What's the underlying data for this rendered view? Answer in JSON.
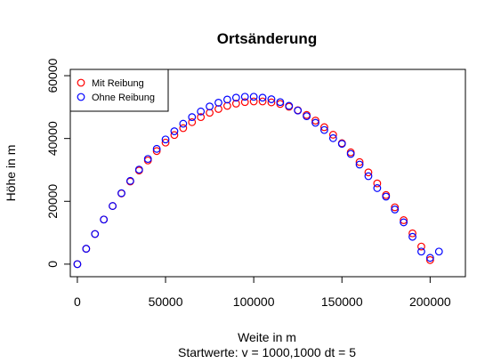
{
  "chart_data": {
    "type": "scatter",
    "title": "Ortsänderung",
    "xlabel": "Weite in m",
    "ylabel": "Höhe in m",
    "subtitle": "Startwerte: v = 1000,1000 dt = 5",
    "xlim": [
      -4000,
      220000
    ],
    "ylim": [
      -4000,
      62000
    ],
    "xticks": [
      0,
      50000,
      100000,
      150000,
      200000
    ],
    "yticks": [
      0,
      20000,
      40000,
      60000
    ],
    "xtick_labels": [
      "0",
      "50000",
      "100000",
      "150000",
      "200000"
    ],
    "ytick_labels": [
      "0",
      "20000",
      "40000",
      "60000"
    ],
    "grid": false,
    "legend_position": "top-left",
    "series": [
      {
        "name": "Mit Reibung",
        "color": "#ff0000",
        "marker": "open-circle",
        "x": [
          0,
          5000,
          10000,
          15000,
          20000,
          25000,
          30000,
          35000,
          40000,
          45000,
          50000,
          55000,
          60000,
          65000,
          70000,
          75000,
          80000,
          85000,
          90000,
          95000,
          100000,
          105000,
          110000,
          115000,
          120000,
          125000,
          130000,
          135000,
          140000,
          145000,
          150000,
          155000,
          160000,
          165000,
          170000,
          175000,
          180000,
          185000,
          190000,
          195000,
          200000
        ],
        "y": [
          0,
          4900,
          9600,
          14200,
          18500,
          22500,
          26300,
          29800,
          33000,
          36000,
          38700,
          41100,
          43300,
          45200,
          46800,
          48200,
          49400,
          50400,
          51100,
          51600,
          51800,
          51800,
          51500,
          51000,
          50100,
          49000,
          47500,
          45700,
          43600,
          41200,
          38500,
          35600,
          32500,
          29200,
          25700,
          22000,
          18100,
          14000,
          9800,
          5600,
          1300
        ]
      },
      {
        "name": "Ohne Reibung",
        "color": "#0000ff",
        "marker": "open-circle",
        "x": [
          0,
          5000,
          10000,
          15000,
          20000,
          25000,
          30000,
          35000,
          40000,
          45000,
          50000,
          55000,
          60000,
          65000,
          70000,
          75000,
          80000,
          85000,
          90000,
          95000,
          100000,
          105000,
          110000,
          115000,
          120000,
          125000,
          130000,
          135000,
          140000,
          145000,
          150000,
          155000,
          160000,
          165000,
          170000,
          175000,
          180000,
          185000,
          190000,
          195000,
          200000,
          205000
        ],
        "y": [
          0,
          4900,
          9600,
          14200,
          18500,
          22600,
          26500,
          30100,
          33500,
          36700,
          39700,
          42300,
          44700,
          46800,
          48600,
          50200,
          51400,
          52400,
          53000,
          53300,
          53300,
          53000,
          52500,
          51600,
          50400,
          48900,
          47100,
          45000,
          42700,
          40100,
          38300,
          35100,
          31700,
          28000,
          24200,
          21500,
          17400,
          13300,
          8700,
          4000,
          2000,
          4000
        ]
      }
    ]
  }
}
